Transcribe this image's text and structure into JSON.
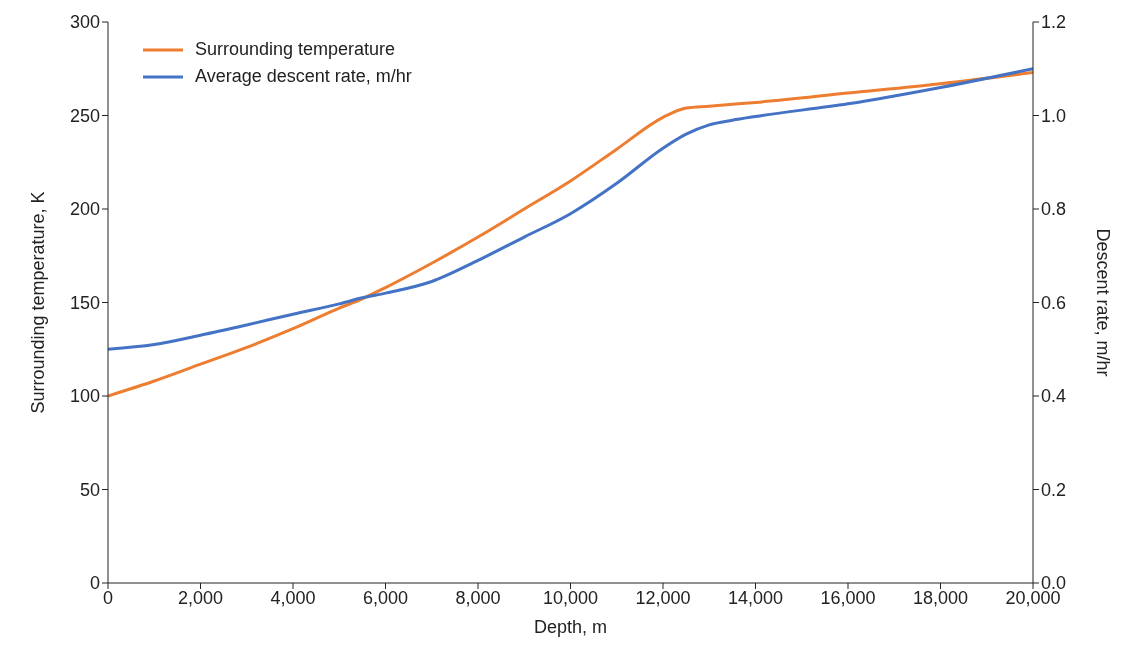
{
  "chart_data": {
    "type": "line",
    "xlabel": "Depth, m",
    "ylabel": "Surrounding temperature, K",
    "y2label": "Descent rate, m/hr",
    "x": [
      0,
      1000,
      2000,
      3000,
      4000,
      5000,
      5500,
      6000,
      7000,
      8000,
      9000,
      10000,
      11000,
      12000,
      12500,
      13000,
      13500,
      14000,
      16000,
      18000,
      20000
    ],
    "series": [
      {
        "name": "Surrounding temperature",
        "color": "#ed7d31",
        "values": [
          100,
          108,
          117,
          126,
          136,
          147,
          152,
          158,
          171,
          185,
          200,
          215,
          232,
          249,
          254,
          255,
          256,
          257,
          262,
          267,
          273
        ]
      },
      {
        "name": "Average descent rate, m/hr",
        "color": "#4472c4",
        "axis": "y2",
        "values": [
          0.5,
          0.51,
          0.53,
          0.552,
          0.575,
          0.597,
          0.61,
          0.62,
          0.645,
          0.69,
          0.74,
          0.79,
          0.855,
          0.93,
          0.96,
          0.98,
          0.99,
          0.998,
          1.025,
          1.06,
          1.1
        ]
      }
    ],
    "xlim": [
      0,
      20000
    ],
    "xticks": [
      0,
      {
        "value": 2000,
        "label": "2,000"
      },
      {
        "value": 4000,
        "label": "4,000"
      },
      {
        "value": 6000,
        "label": "6,000"
      },
      {
        "value": 8000,
        "label": "8,000"
      },
      {
        "value": 10000,
        "label": "10,000"
      },
      {
        "value": 12000,
        "label": "12,000"
      },
      {
        "value": 14000,
        "label": "14,000"
      },
      {
        "value": 16000,
        "label": "16,000"
      },
      {
        "value": 18000,
        "label": "18,000"
      },
      {
        "value": 20000,
        "label": "20,000"
      }
    ],
    "ylim": [
      0,
      300
    ],
    "yticks": [
      0,
      50,
      100,
      150,
      200,
      250,
      300
    ],
    "y2lim": [
      0,
      1.2
    ],
    "y2ticks": [
      {
        "value": 0,
        "label": "0.0"
      },
      0.2,
      0.4,
      0.6,
      0.8,
      {
        "value": 1,
        "label": "1.0"
      },
      1.2
    ],
    "grid": false,
    "legend": "top left",
    "marker": "none",
    "line_style": "solid"
  }
}
